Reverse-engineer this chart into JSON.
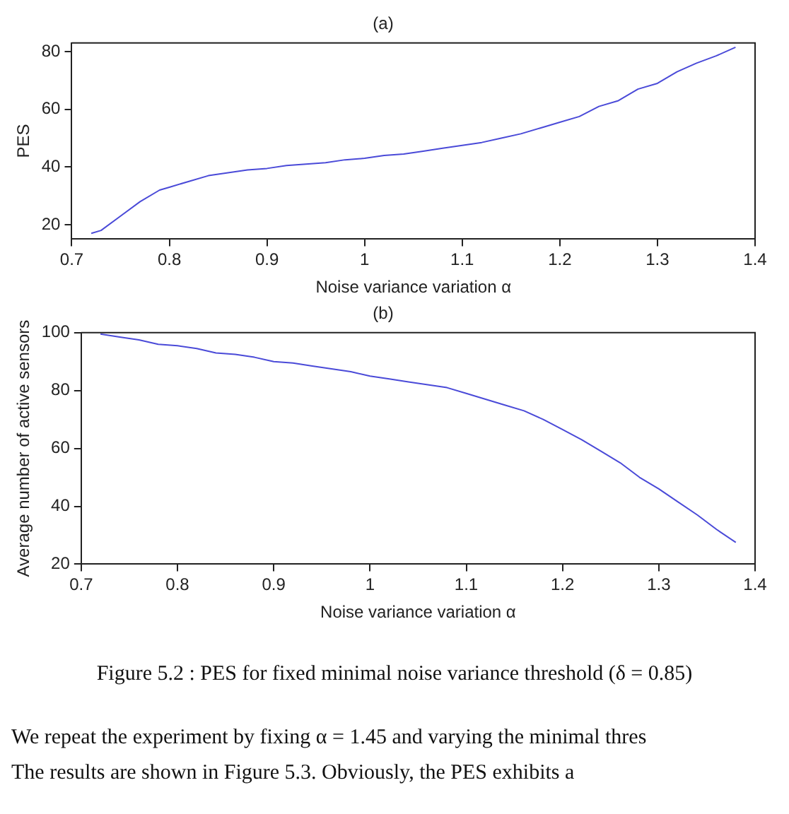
{
  "chart_data": [
    {
      "type": "line",
      "title": "(a)",
      "xlabel": "Noise variance variation α",
      "ylabel": "PES",
      "x": [
        0.72,
        0.73,
        0.75,
        0.77,
        0.79,
        0.8,
        0.82,
        0.84,
        0.86,
        0.88,
        0.9,
        0.92,
        0.94,
        0.96,
        0.98,
        1.0,
        1.02,
        1.04,
        1.06,
        1.08,
        1.1,
        1.12,
        1.14,
        1.16,
        1.18,
        1.2,
        1.22,
        1.24,
        1.26,
        1.28,
        1.3,
        1.32,
        1.34,
        1.36,
        1.38
      ],
      "series": [
        {
          "color": "#4a4ad8",
          "values": [
            17,
            18,
            23,
            28,
            32,
            33,
            35,
            37,
            38,
            39,
            39.5,
            40.5,
            41,
            41.5,
            42.5,
            43,
            44,
            44.5,
            45.5,
            46.5,
            47.5,
            48.5,
            50,
            51.5,
            53.5,
            55.5,
            57.5,
            61,
            63,
            67,
            69,
            73,
            76,
            78.5,
            81.5
          ]
        }
      ],
      "xlim": [
        0.7,
        1.4
      ],
      "xticks": [
        0.7,
        0.8,
        0.9,
        1,
        1.1,
        1.2,
        1.3,
        1.4
      ],
      "ylim": [
        15,
        83
      ],
      "yticks": [
        20,
        40,
        60,
        80
      ],
      "marker": "none",
      "line_style": "solid"
    },
    {
      "type": "line",
      "title": "(b)",
      "xlabel": "Noise variance variation α",
      "ylabel": "Average number of active sensors",
      "x": [
        0.72,
        0.74,
        0.76,
        0.78,
        0.8,
        0.82,
        0.84,
        0.86,
        0.88,
        0.9,
        0.92,
        0.94,
        0.96,
        0.98,
        1.0,
        1.02,
        1.04,
        1.06,
        1.08,
        1.1,
        1.12,
        1.14,
        1.16,
        1.18,
        1.2,
        1.22,
        1.24,
        1.26,
        1.28,
        1.3,
        1.32,
        1.34,
        1.36,
        1.38
      ],
      "series": [
        {
          "color": "#4a4ad8",
          "values": [
            99.5,
            98.5,
            97.5,
            96,
            95.5,
            94.5,
            93,
            92.5,
            91.5,
            90,
            89.5,
            88.5,
            87.5,
            86.5,
            85,
            84,
            83,
            82,
            81,
            79,
            77,
            75,
            73,
            70,
            66.5,
            63,
            59,
            55,
            50,
            46,
            41.5,
            37,
            32,
            27.5
          ]
        }
      ],
      "xlim": [
        0.7,
        1.4
      ],
      "xticks": [
        0.7,
        0.8,
        0.9,
        1,
        1.1,
        1.2,
        1.3,
        1.4
      ],
      "ylim": [
        20,
        100
      ],
      "yticks": [
        20,
        40,
        60,
        80,
        100
      ],
      "marker": "none",
      "line_style": "solid",
      "annotations": [
        "Figure 5.2 : PES for fixed minimal noise variance threshold (δ = 0.85)",
        "We repeat the experiment by fixing α = 1.45 and varying the minimal thres",
        "The results are shown in Figure 5.3. Obviously, the PES exhibits a"
      ]
    }
  ]
}
